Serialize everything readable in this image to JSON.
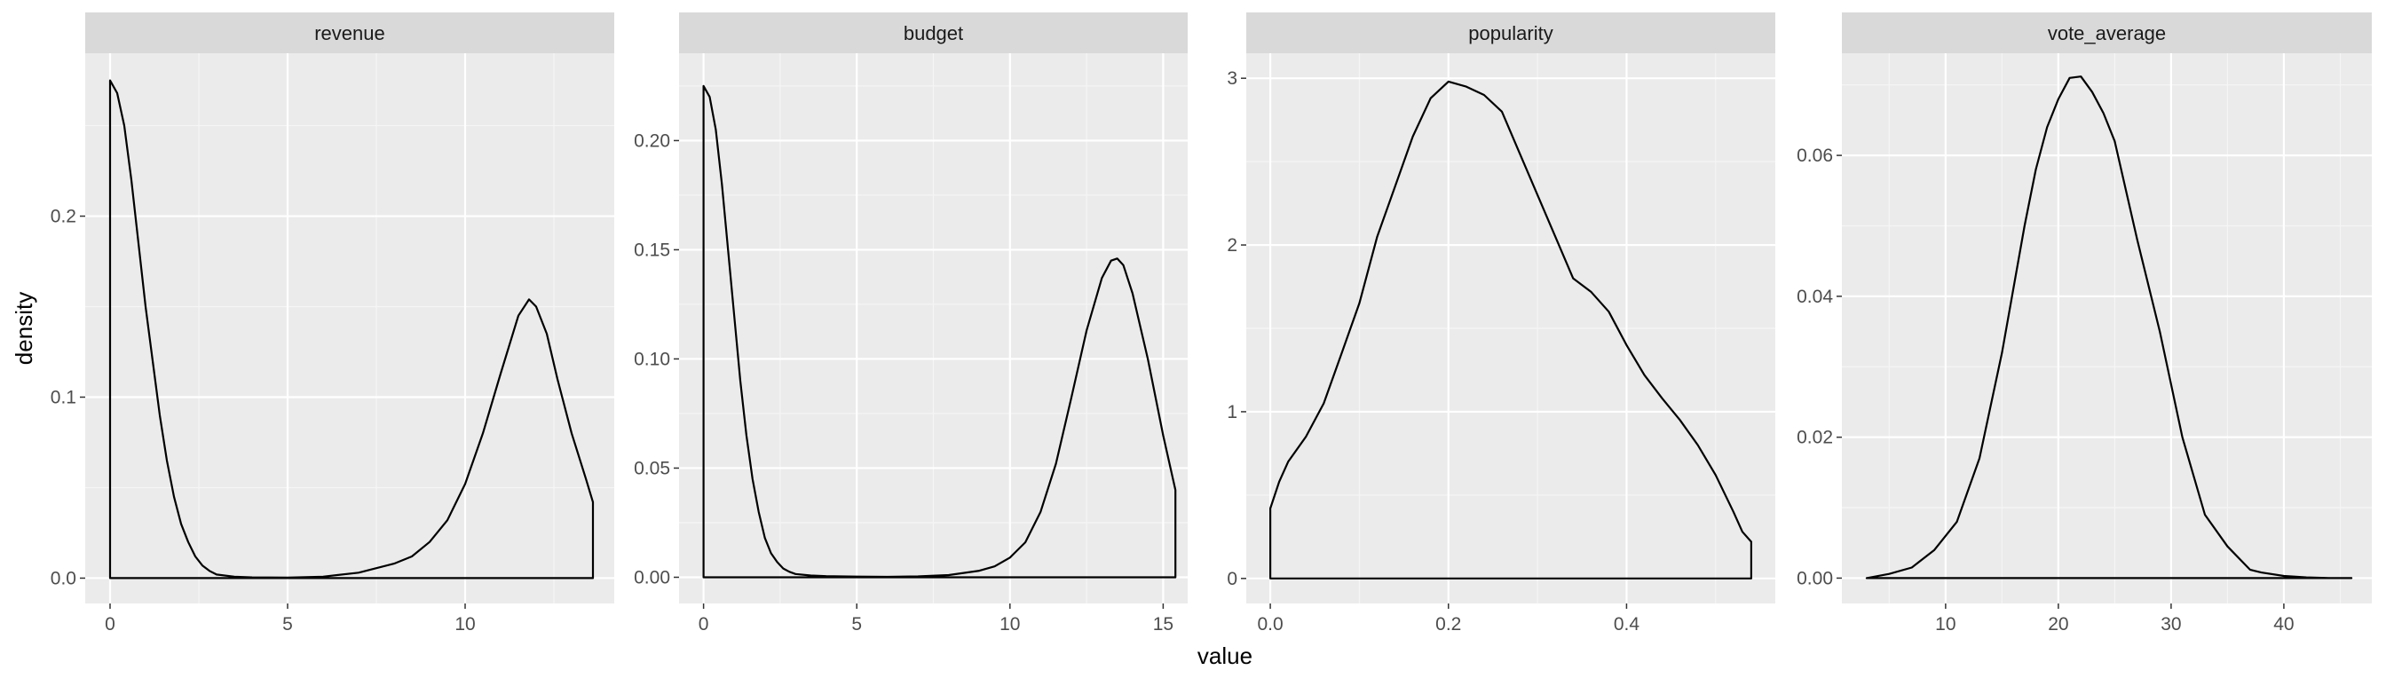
{
  "chart_data": {
    "type": "area",
    "facet": true,
    "xlabel": "value",
    "ylabel": "density",
    "colors": {
      "panel_bg": "#EBEBEB",
      "strip_bg": "#D9D9D9",
      "grid_major": "#FFFFFF",
      "grid_minor": "#F5F5F5",
      "line": "#000000",
      "tick": "#333333"
    },
    "panels": [
      {
        "name": "revenue",
        "xlim": [
          -0.7,
          14.2
        ],
        "ylim": [
          -0.014,
          0.29
        ],
        "x_ticks": [
          0,
          5,
          10
        ],
        "y_ticks": [
          0.0,
          0.1,
          0.2
        ],
        "x_tick_labels": [
          "0",
          "5",
          "10"
        ],
        "y_tick_labels": [
          "0.0",
          "0.1",
          "0.2"
        ],
        "x": [
          0,
          0.2,
          0.4,
          0.6,
          0.8,
          1.0,
          1.2,
          1.4,
          1.6,
          1.8,
          2.0,
          2.2,
          2.4,
          2.6,
          2.8,
          3.0,
          3.5,
          4,
          5,
          6,
          7,
          8,
          8.5,
          9,
          9.5,
          10,
          10.5,
          11,
          11.5,
          11.8,
          12,
          12.3,
          12.6,
          13,
          13.4,
          13.6
        ],
        "y": [
          0.275,
          0.268,
          0.25,
          0.22,
          0.185,
          0.15,
          0.12,
          0.09,
          0.065,
          0.045,
          0.03,
          0.02,
          0.012,
          0.007,
          0.004,
          0.002,
          0.0008,
          0.0004,
          0.0003,
          0.0008,
          0.003,
          0.008,
          0.012,
          0.02,
          0.032,
          0.052,
          0.08,
          0.113,
          0.145,
          0.154,
          0.15,
          0.135,
          0.11,
          0.08,
          0.055,
          0.042
        ]
      },
      {
        "name": "budget",
        "xlim": [
          -0.8,
          15.8
        ],
        "ylim": [
          -0.012,
          0.24
        ],
        "x_ticks": [
          0,
          5,
          10,
          15
        ],
        "y_ticks": [
          0.0,
          0.05,
          0.1,
          0.15,
          0.2
        ],
        "x_tick_labels": [
          "0",
          "5",
          "10",
          "15"
        ],
        "y_tick_labels": [
          "0.00",
          "0.05",
          "0.10",
          "0.15",
          "0.20"
        ],
        "x": [
          0,
          0.2,
          0.4,
          0.6,
          0.8,
          1.0,
          1.2,
          1.4,
          1.6,
          1.8,
          2.0,
          2.2,
          2.4,
          2.6,
          2.8,
          3.0,
          3.5,
          4,
          5,
          6,
          7,
          8,
          9,
          9.5,
          10,
          10.5,
          11,
          11.5,
          12,
          12.5,
          13,
          13.3,
          13.5,
          13.7,
          14,
          14.5,
          15,
          15.4
        ],
        "y": [
          0.225,
          0.22,
          0.205,
          0.18,
          0.15,
          0.12,
          0.09,
          0.065,
          0.045,
          0.03,
          0.018,
          0.011,
          0.007,
          0.004,
          0.0025,
          0.0015,
          0.0008,
          0.0005,
          0.0003,
          0.0002,
          0.0004,
          0.001,
          0.003,
          0.005,
          0.009,
          0.016,
          0.03,
          0.052,
          0.082,
          0.113,
          0.137,
          0.145,
          0.146,
          0.143,
          0.13,
          0.1,
          0.065,
          0.04
        ]
      },
      {
        "name": "popularity",
        "xlim": [
          -0.027,
          0.567
        ],
        "ylim": [
          -0.15,
          3.15
        ],
        "x_ticks": [
          0.0,
          0.2,
          0.4
        ],
        "y_ticks": [
          0,
          1,
          2,
          3
        ],
        "x_tick_labels": [
          "0.0",
          "0.2",
          "0.4"
        ],
        "y_tick_labels": [
          "0",
          "1",
          "2",
          "3"
        ],
        "x": [
          0,
          0.01,
          0.02,
          0.04,
          0.06,
          0.08,
          0.1,
          0.12,
          0.14,
          0.16,
          0.18,
          0.2,
          0.22,
          0.24,
          0.26,
          0.28,
          0.3,
          0.32,
          0.34,
          0.36,
          0.38,
          0.4,
          0.42,
          0.44,
          0.46,
          0.48,
          0.5,
          0.52,
          0.53,
          0.54
        ],
        "y": [
          0.42,
          0.58,
          0.7,
          0.85,
          1.05,
          1.35,
          1.65,
          2.05,
          2.35,
          2.65,
          2.88,
          2.98,
          2.95,
          2.9,
          2.8,
          2.55,
          2.3,
          2.05,
          1.8,
          1.72,
          1.6,
          1.4,
          1.22,
          1.08,
          0.95,
          0.8,
          0.62,
          0.4,
          0.28,
          0.22
        ]
      },
      {
        "name": "vote_average",
        "xlim": [
          0.8,
          47.8
        ],
        "ylim": [
          -0.0036,
          0.0745
        ],
        "x_ticks": [
          10,
          20,
          30,
          40
        ],
        "y_ticks": [
          0.0,
          0.02,
          0.04,
          0.06
        ],
        "x_tick_labels": [
          "10",
          "20",
          "30",
          "40"
        ],
        "y_tick_labels": [
          "0.00",
          "0.02",
          "0.04",
          "0.06"
        ],
        "x": [
          3,
          5,
          7,
          9,
          11,
          13,
          15,
          17,
          18,
          19,
          20,
          21,
          22,
          23,
          24,
          25,
          27,
          29,
          31,
          33,
          35,
          37,
          38,
          40,
          42,
          44,
          46
        ],
        "y": [
          0.0,
          0.0006,
          0.0015,
          0.004,
          0.008,
          0.017,
          0.032,
          0.05,
          0.058,
          0.064,
          0.068,
          0.071,
          0.0712,
          0.069,
          0.066,
          0.062,
          0.048,
          0.035,
          0.02,
          0.009,
          0.0045,
          0.0012,
          0.0008,
          0.0003,
          0.0001,
          0.0,
          0.0
        ]
      }
    ]
  }
}
